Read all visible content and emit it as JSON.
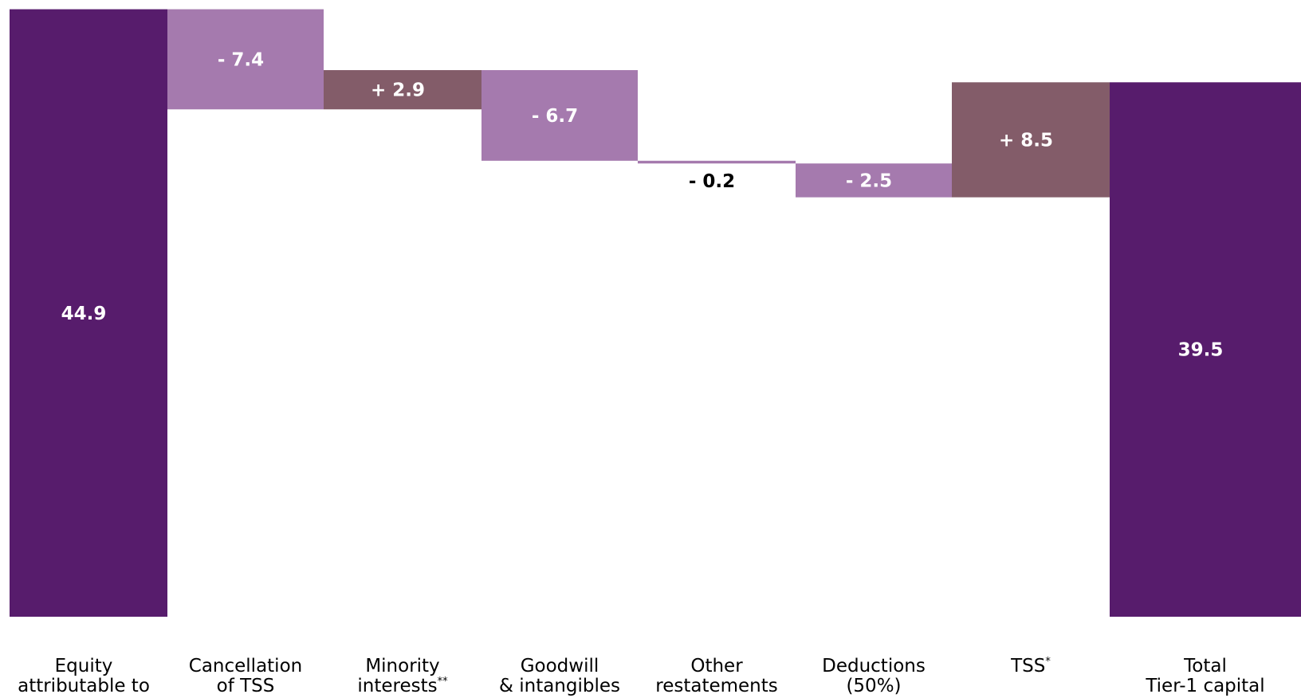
{
  "chart_data": {
    "type": "waterfall",
    "title": "",
    "xlabel": "",
    "ylabel": "",
    "ylim": [
      0,
      45.5
    ],
    "grid": false,
    "legend": "none",
    "categories": [
      {
        "line1": "Equity",
        "line2": "attributable to",
        "sup": ""
      },
      {
        "line1": "Cancellation",
        "line2": "of TSS",
        "sup": ""
      },
      {
        "line1": "Minority",
        "line2": "interests",
        "sup": "**"
      },
      {
        "line1": "Goodwill",
        "line2": "& intangibles",
        "sup": ""
      },
      {
        "line1": "Other",
        "line2": "restatements",
        "sup": ""
      },
      {
        "line1": "Deductions",
        "line2": "(50%)",
        "sup": ""
      },
      {
        "line1": "TSS",
        "line2": "",
        "sup": "*"
      },
      {
        "line1": "Total",
        "line2": "Tier-1 capital",
        "sup": ""
      }
    ],
    "steps": [
      {
        "kind": "total",
        "value": 44.9,
        "label": "44.9"
      },
      {
        "kind": "delta",
        "value": -7.4,
        "label": "- 7.4"
      },
      {
        "kind": "delta",
        "value": 2.9,
        "label": "+ 2.9"
      },
      {
        "kind": "delta",
        "value": -6.7,
        "label": "- 6.7"
      },
      {
        "kind": "delta",
        "value": -0.2,
        "label": "- 0.2"
      },
      {
        "kind": "delta",
        "value": -2.5,
        "label": "- 2.5"
      },
      {
        "kind": "delta",
        "value": 8.5,
        "label": "+ 8.5"
      },
      {
        "kind": "total",
        "value": 39.5,
        "label": "39.5"
      }
    ],
    "colors": {
      "total": "#571c6c",
      "decrease": "#a57aae",
      "increase": "#835c69",
      "label_on_bar": "#ffffff",
      "label_outside": "#000000"
    }
  }
}
